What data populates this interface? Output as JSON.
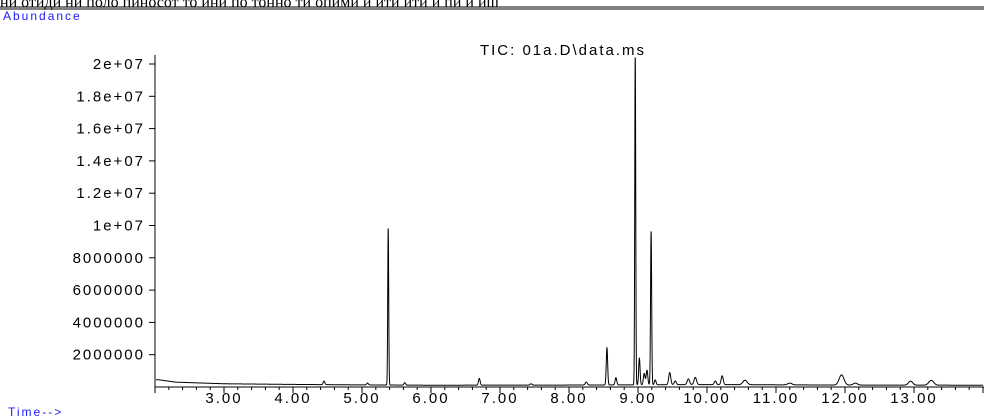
{
  "chart_data": {
    "type": "line",
    "title": "TIC: 01a.D\\data.ms",
    "ylabel": "Abundance",
    "xlabel": "Time-->",
    "xlim": [
      2.0,
      14.0
    ],
    "ylim": [
      0,
      20500000
    ],
    "xticks": [
      3.0,
      4.0,
      5.0,
      6.0,
      7.0,
      8.0,
      9.0,
      10.0,
      11.0,
      12.0,
      13.0
    ],
    "xtick_labels": [
      "3.00",
      "4.00",
      "5.00",
      "6.00",
      "7.00",
      "8.00",
      "9.00",
      "10.00",
      "11.00",
      "12.00",
      "13.00"
    ],
    "yticks": [
      2000000,
      4000000,
      6000000,
      8000000,
      10000000,
      12000000,
      14000000,
      16000000,
      18000000,
      20000000
    ],
    "ytick_labels": [
      "2000000",
      "4000000",
      "6000000",
      "8000000",
      "1e+07",
      "1.2e+07",
      "1.4e+07",
      "1.6e+07",
      "1.8e+07",
      "2e+07"
    ],
    "baseline": {
      "x": [
        2.05,
        2.3,
        3.0,
        4.0,
        5.0,
        6.0,
        8.0,
        10.0,
        12.0,
        14.0
      ],
      "y": [
        450000,
        300000,
        200000,
        160000,
        130000,
        110000,
        120000,
        150000,
        120000,
        110000
      ]
    },
    "peaks": [
      {
        "rt": 4.45,
        "height": 220000,
        "width": 0.012
      },
      {
        "rt": 5.08,
        "height": 120000,
        "width": 0.012
      },
      {
        "rt": 5.38,
        "height": 9700000,
        "width": 0.007
      },
      {
        "rt": 5.62,
        "height": 150000,
        "width": 0.012
      },
      {
        "rt": 6.7,
        "height": 420000,
        "width": 0.012
      },
      {
        "rt": 7.45,
        "height": 80000,
        "width": 0.015
      },
      {
        "rt": 8.25,
        "height": 180000,
        "width": 0.015
      },
      {
        "rt": 8.55,
        "height": 2300000,
        "width": 0.01
      },
      {
        "rt": 8.68,
        "height": 450000,
        "width": 0.012
      },
      {
        "rt": 8.96,
        "height": 20500000,
        "width": 0.007
      },
      {
        "rt": 9.02,
        "height": 1650000,
        "width": 0.01
      },
      {
        "rt": 9.09,
        "height": 700000,
        "width": 0.012
      },
      {
        "rt": 9.13,
        "height": 900000,
        "width": 0.012
      },
      {
        "rt": 9.19,
        "height": 9500000,
        "width": 0.008
      },
      {
        "rt": 9.25,
        "height": 300000,
        "width": 0.012
      },
      {
        "rt": 9.46,
        "height": 750000,
        "width": 0.015
      },
      {
        "rt": 9.54,
        "height": 230000,
        "width": 0.015
      },
      {
        "rt": 9.73,
        "height": 350000,
        "width": 0.018
      },
      {
        "rt": 9.83,
        "height": 450000,
        "width": 0.018
      },
      {
        "rt": 10.12,
        "height": 220000,
        "width": 0.015
      },
      {
        "rt": 10.22,
        "height": 550000,
        "width": 0.015
      },
      {
        "rt": 10.55,
        "height": 280000,
        "width": 0.03
      },
      {
        "rt": 11.2,
        "height": 110000,
        "width": 0.03
      },
      {
        "rt": 11.95,
        "height": 630000,
        "width": 0.035
      },
      {
        "rt": 12.15,
        "height": 120000,
        "width": 0.03
      },
      {
        "rt": 12.95,
        "height": 250000,
        "width": 0.03
      },
      {
        "rt": 13.25,
        "height": 300000,
        "width": 0.035
      }
    ],
    "header_text": "ни отиди ни поло пиносот то ини по тонно ти опими и ити ити и пи и иш",
    "grid": false,
    "line_color": "#000000",
    "label_color": "#1a1aff"
  }
}
